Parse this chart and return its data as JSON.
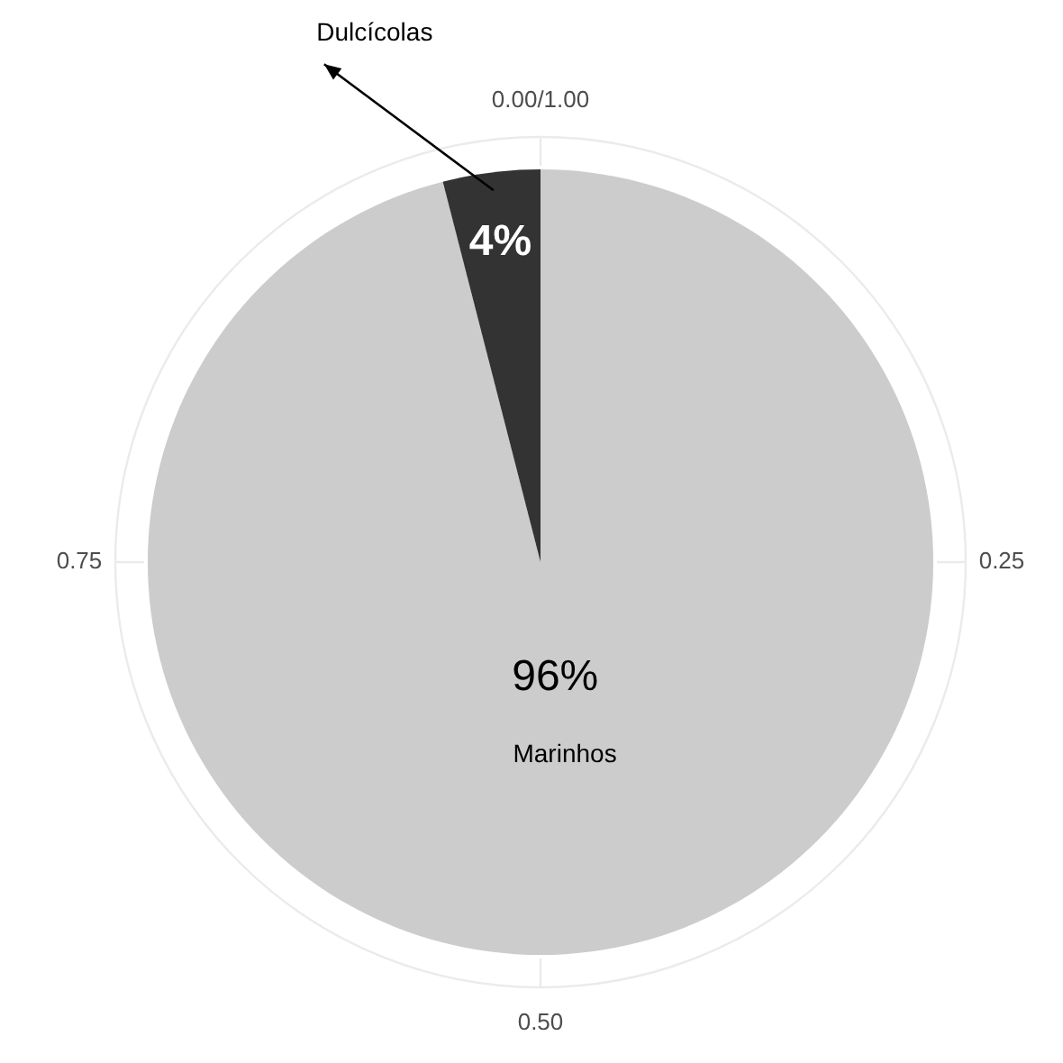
{
  "chart_data": {
    "type": "pie",
    "categories": [
      "Marinhos",
      "Dulcícolas"
    ],
    "values": [
      96,
      4
    ],
    "colors": [
      "#cccccc",
      "#333333"
    ],
    "value_labels": [
      "96%",
      "4%"
    ],
    "annotations": [
      "0.00/1.00",
      "0.25",
      "0.50",
      "0.75"
    ],
    "grid": true
  }
}
